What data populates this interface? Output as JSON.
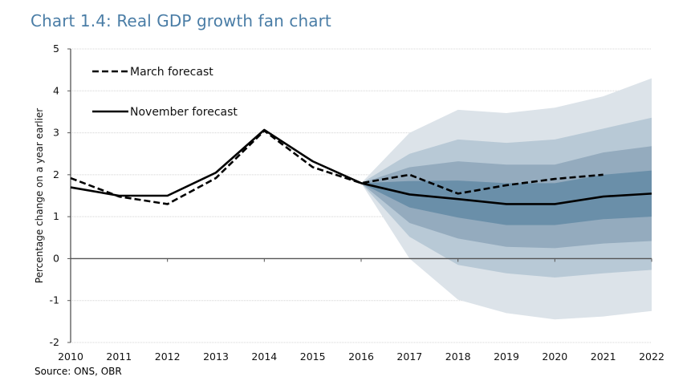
{
  "chart_data": {
    "type": "line",
    "title": "Chart 1.4: Real GDP growth fan chart",
    "xlabel": "",
    "ylabel": "Percentage change on a year earlier",
    "source": "Source: ONS, OBR",
    "x": [
      2010,
      2011,
      2012,
      2013,
      2014,
      2015,
      2016,
      2017,
      2018,
      2019,
      2020,
      2021,
      2022
    ],
    "x_tick_labels": [
      "2010",
      "2011",
      "2012",
      "2013",
      "2014",
      "2015",
      "2016",
      "2017",
      "2018",
      "2019",
      "2020",
      "2021",
      "2022"
    ],
    "ylim": [
      -2,
      5
    ],
    "y_ticks": [
      -2,
      -1,
      0,
      1,
      2,
      3,
      4,
      5
    ],
    "y_tick_labels": [
      "-2",
      "-1",
      "0",
      "1",
      "2",
      "3",
      "4",
      "5"
    ],
    "grid": "horizontal-dotted",
    "legend_position": "top-left",
    "series": [
      {
        "name": "March forecast",
        "style": "dashed",
        "color": "#000000",
        "x": [
          2010,
          2011,
          2012,
          2013,
          2014,
          2015,
          2016,
          2017,
          2018,
          2019,
          2020,
          2021
        ],
        "values": [
          1.92,
          1.48,
          1.3,
          1.92,
          3.05,
          2.18,
          1.8,
          2.0,
          1.55,
          1.75,
          1.9,
          2.0
        ]
      },
      {
        "name": "November forecast",
        "style": "solid",
        "color": "#000000",
        "x": [
          2010,
          2011,
          2012,
          2013,
          2014,
          2015,
          2016,
          2017,
          2018,
          2019,
          2020,
          2021,
          2022
        ],
        "values": [
          1.7,
          1.5,
          1.5,
          2.05,
          3.07,
          2.32,
          1.8,
          1.53,
          1.42,
          1.3,
          1.3,
          1.48,
          1.55
        ]
      }
    ],
    "fan": {
      "x": [
        2016,
        2017,
        2018,
        2019,
        2020,
        2021,
        2022
      ],
      "colors": [
        "#dce3e9",
        "#b8c9d6",
        "#94abbe",
        "#6a8fa9"
      ],
      "upper": [
        [
          1.8,
          3.0,
          3.55,
          3.47,
          3.6,
          3.87,
          4.3
        ],
        [
          1.8,
          2.5,
          2.84,
          2.76,
          2.84,
          3.1,
          3.36
        ],
        [
          1.8,
          2.18,
          2.32,
          2.24,
          2.24,
          2.53,
          2.68
        ],
        [
          1.8,
          1.85,
          1.86,
          1.8,
          1.8,
          2.0,
          2.1
        ]
      ],
      "lower": [
        [
          1.8,
          0.0,
          -0.98,
          -1.3,
          -1.45,
          -1.38,
          -1.25
        ],
        [
          1.8,
          0.52,
          -0.15,
          -0.35,
          -0.45,
          -0.35,
          -0.27
        ],
        [
          1.8,
          0.85,
          0.48,
          0.28,
          0.25,
          0.36,
          0.42
        ],
        [
          1.8,
          1.22,
          0.98,
          0.8,
          0.8,
          0.94,
          1.0
        ]
      ]
    }
  }
}
